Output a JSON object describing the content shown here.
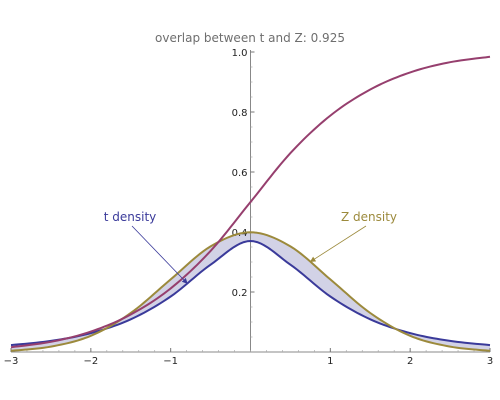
{
  "chart_data": {
    "type": "line",
    "title": "overlap between t and Z: 0.925",
    "xlabel": "",
    "ylabel": "",
    "xlim": [
      -3,
      3
    ],
    "ylim": [
      0,
      1.0
    ],
    "x_ticks": [
      -3,
      -2,
      -1,
      1,
      2,
      3
    ],
    "x_tick_labels": [
      "−3",
      "−2",
      "−1",
      "1",
      "2",
      "3"
    ],
    "y_ticks": [
      0.2,
      0.4,
      0.6,
      0.8,
      1.0
    ],
    "y_tick_labels": [
      "0.2",
      "0.4",
      "0.6",
      "0.8",
      "1.0"
    ],
    "grid": false,
    "x": [
      -3,
      -2.5,
      -2,
      -1.5,
      -1,
      -0.5,
      0,
      0.5,
      1,
      1.5,
      2,
      2.5,
      3
    ],
    "series": [
      {
        "name": "t density",
        "color": "#3a3a9a",
        "values": [
          0.023,
          0.037,
          0.063,
          0.109,
          0.185,
          0.291,
          0.37,
          0.291,
          0.185,
          0.109,
          0.063,
          0.037,
          0.023
        ]
      },
      {
        "name": "Z density",
        "color": "#9c8a3c",
        "values": [
          0.004,
          0.018,
          0.054,
          0.13,
          0.242,
          0.352,
          0.399,
          0.352,
          0.242,
          0.13,
          0.054,
          0.018,
          0.004
        ]
      },
      {
        "name": "",
        "color": "#963f6e",
        "values": [
          0.016,
          0.034,
          0.068,
          0.125,
          0.212,
          0.337,
          0.5,
          0.663,
          0.788,
          0.875,
          0.932,
          0.966,
          0.984
        ]
      }
    ],
    "overlap_fill": "#d2d2e6",
    "annotations": [
      {
        "text": "t density",
        "color": "#3a3a9a",
        "points_to_x": -0.8
      },
      {
        "text": "Z density",
        "color": "#9c8a3c",
        "points_to_x": 0.75
      }
    ]
  }
}
